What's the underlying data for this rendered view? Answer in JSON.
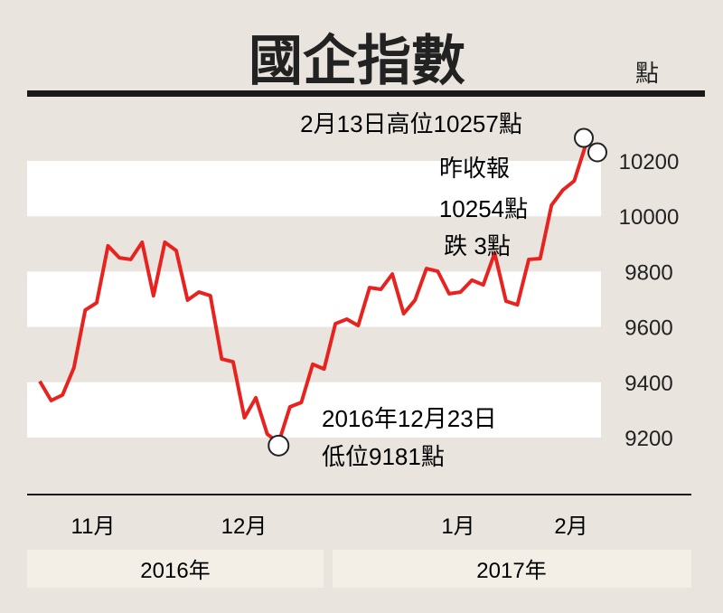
{
  "chart_data": {
    "type": "line",
    "title": "國企指數",
    "ylabel": "點",
    "ylim": [
      9100,
      10300
    ],
    "yticks": [
      9200,
      9400,
      9600,
      9800,
      10000,
      10200
    ],
    "month_labels": [
      "11月",
      "12月",
      "1月",
      "2月"
    ],
    "year_labels": [
      "2016年",
      "2017年"
    ],
    "grid": "alternating horizontal bands",
    "line_color": "#e8231f",
    "values": [
      9404,
      9334,
      9354,
      9452,
      9661,
      9687,
      9893,
      9850,
      9844,
      9906,
      9713,
      9906,
      9876,
      9697,
      9726,
      9713,
      9484,
      9474,
      9272,
      9344,
      9213,
      9181,
      9311,
      9327,
      9465,
      9448,
      9612,
      9628,
      9605,
      9742,
      9736,
      9791,
      9648,
      9697,
      9811,
      9801,
      9720,
      9726,
      9769,
      9752,
      9867,
      9693,
      9680,
      9844,
      9847,
      10040,
      10095,
      10128,
      10257
    ],
    "annotations": {
      "high": {
        "value": 10257,
        "line1": "2月13日高位10257點"
      },
      "close": {
        "value": 10254,
        "line1": "昨收報",
        "line2": "10254點",
        "line3": "跌 3點"
      },
      "low": {
        "value": 9181,
        "line1": "2016年12月23日",
        "line2": "低位9181點"
      }
    }
  }
}
